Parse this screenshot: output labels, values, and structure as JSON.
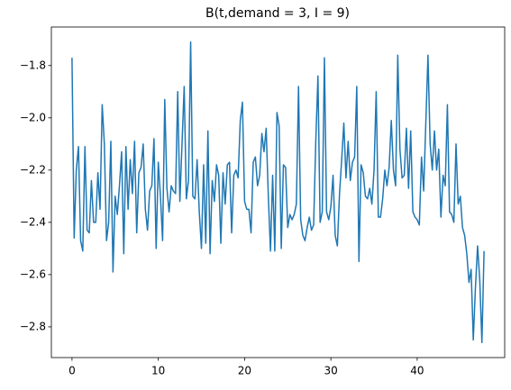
{
  "chart_data": {
    "type": "line",
    "title": "B(t,demand = 3, I = 9)",
    "x": [
      0,
      0.25,
      0.5,
      0.75,
      1,
      1.25,
      1.5,
      1.75,
      2,
      2.25,
      2.5,
      2.75,
      3,
      3.25,
      3.5,
      3.75,
      4,
      4.25,
      4.5,
      4.75,
      5,
      5.25,
      5.5,
      5.75,
      6,
      6.25,
      6.5,
      6.75,
      7,
      7.25,
      7.5,
      7.75,
      8,
      8.25,
      8.5,
      8.75,
      9,
      9.25,
      9.5,
      9.75,
      10,
      10.25,
      10.5,
      10.75,
      11,
      11.25,
      11.5,
      11.75,
      12,
      12.25,
      12.5,
      12.75,
      13,
      13.25,
      13.5,
      13.75,
      14,
      14.25,
      14.5,
      14.75,
      15,
      15.25,
      15.5,
      15.75,
      16,
      16.25,
      16.5,
      16.75,
      17,
      17.25,
      17.5,
      17.75,
      18,
      18.25,
      18.5,
      18.75,
      19,
      19.25,
      19.5,
      19.75,
      20,
      20.25,
      20.5,
      20.75,
      21,
      21.25,
      21.5,
      21.75,
      22,
      22.25,
      22.5,
      22.75,
      23,
      23.25,
      23.5,
      23.75,
      24,
      24.25,
      24.5,
      24.75,
      25,
      25.25,
      25.5,
      25.75,
      26,
      26.25,
      26.5,
      26.75,
      27,
      27.25,
      27.5,
      27.75,
      28,
      28.25,
      28.5,
      28.75,
      29,
      29.25,
      29.5,
      29.75,
      30,
      30.25,
      30.5,
      30.75,
      31,
      31.25,
      31.5,
      31.75,
      32,
      32.25,
      32.5,
      32.75,
      33,
      33.25,
      33.5,
      33.75,
      34,
      34.25,
      34.5,
      34.75,
      35,
      35.25,
      35.5,
      35.75,
      36,
      36.25,
      36.5,
      36.75,
      37,
      37.25,
      37.5,
      37.75,
      38,
      38.25,
      38.5,
      38.75,
      39,
      39.25,
      39.5,
      39.75,
      40,
      40.25,
      40.5,
      40.75,
      41,
      41.25,
      41.5,
      41.75,
      42,
      42.25,
      42.5,
      42.75,
      43,
      43.25,
      43.5,
      43.75,
      44,
      44.25,
      44.5,
      44.75,
      45,
      45.25,
      45.5,
      45.75,
      46,
      46.25,
      46.5,
      46.75,
      47,
      47.25,
      47.5,
      47.75
    ],
    "series": [
      {
        "color": "#1f77b4",
        "values": [
          -1.77,
          -2.46,
          -2.2,
          -2.11,
          -2.47,
          -2.51,
          -2.11,
          -2.43,
          -2.44,
          -2.24,
          -2.4,
          -2.4,
          -2.21,
          -2.35,
          -1.95,
          -2.1,
          -2.47,
          -2.4,
          -2.09,
          -2.59,
          -2.3,
          -2.37,
          -2.26,
          -2.13,
          -2.52,
          -2.11,
          -2.35,
          -2.16,
          -2.29,
          -2.09,
          -2.44,
          -2.21,
          -2.19,
          -2.1,
          -2.35,
          -2.43,
          -2.28,
          -2.26,
          -2.08,
          -2.5,
          -2.17,
          -2.3,
          -2.47,
          -1.93,
          -2.27,
          -2.36,
          -2.26,
          -2.28,
          -2.29,
          -1.9,
          -2.32,
          -2.1,
          -1.88,
          -2.31,
          -2.24,
          -1.71,
          -2.3,
          -2.31,
          -2.16,
          -2.36,
          -2.5,
          -2.18,
          -2.48,
          -2.05,
          -2.52,
          -2.24,
          -2.32,
          -2.18,
          -2.22,
          -2.48,
          -2.21,
          -2.33,
          -2.18,
          -2.17,
          -2.44,
          -2.22,
          -2.2,
          -2.23,
          -2.01,
          -1.94,
          -2.32,
          -2.35,
          -2.35,
          -2.44,
          -2.17,
          -2.15,
          -2.26,
          -2.22,
          -2.06,
          -2.13,
          -2.04,
          -2.3,
          -2.51,
          -2.22,
          -2.51,
          -1.98,
          -2.03,
          -2.5,
          -2.18,
          -2.19,
          -2.42,
          -2.37,
          -2.39,
          -2.37,
          -2.33,
          -1.88,
          -2.39,
          -2.45,
          -2.47,
          -2.42,
          -2.38,
          -2.43,
          -2.41,
          -2.09,
          -1.84,
          -2.4,
          -2.36,
          -1.77,
          -2.36,
          -2.39,
          -2.34,
          -2.22,
          -2.45,
          -2.49,
          -2.29,
          -2.16,
          -2.02,
          -2.23,
          -2.09,
          -2.24,
          -2.17,
          -2.15,
          -1.88,
          -2.55,
          -2.18,
          -2.21,
          -2.3,
          -2.31,
          -2.27,
          -2.33,
          -2.2,
          -1.9,
          -2.38,
          -2.38,
          -2.31,
          -2.2,
          -2.26,
          -2.19,
          -2.01,
          -2.2,
          -2.26,
          -1.76,
          -2.12,
          -2.23,
          -2.22,
          -2.04,
          -2.27,
          -2.05,
          -2.36,
          -2.38,
          -2.39,
          -2.41,
          -2.15,
          -2.28,
          -2.02,
          -1.76,
          -2.1,
          -2.2,
          -2.05,
          -2.2,
          -2.12,
          -2.38,
          -2.22,
          -2.26,
          -1.95,
          -2.36,
          -2.37,
          -2.4,
          -2.1,
          -2.33,
          -2.3,
          -2.42,
          -2.45,
          -2.52,
          -2.63,
          -2.58,
          -2.85,
          -2.65,
          -2.49,
          -2.62,
          -2.86,
          -2.51
        ]
      }
    ],
    "xlim": [
      -2.39,
      50.14
    ],
    "ylim": [
      -2.9175,
      -1.6525
    ],
    "xticks": [
      0,
      10,
      20,
      30,
      40
    ],
    "yticks": [
      {
        "value": -2.8,
        "label": "−2.8"
      },
      {
        "value": -2.6,
        "label": "−2.6"
      },
      {
        "value": -2.4,
        "label": "−2.4"
      },
      {
        "value": -2.2,
        "label": "−2.2"
      },
      {
        "value": -2.0,
        "label": "−2.0"
      },
      {
        "value": -1.8,
        "label": "−1.8"
      }
    ],
    "grid": false
  }
}
